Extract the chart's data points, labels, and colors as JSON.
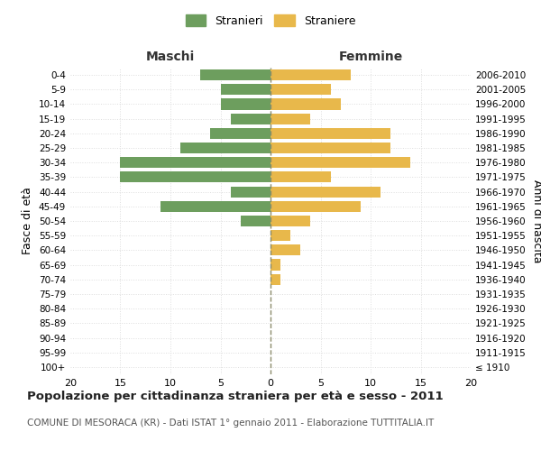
{
  "age_groups": [
    "100+",
    "95-99",
    "90-94",
    "85-89",
    "80-84",
    "75-79",
    "70-74",
    "65-69",
    "60-64",
    "55-59",
    "50-54",
    "45-49",
    "40-44",
    "35-39",
    "30-34",
    "25-29",
    "20-24",
    "15-19",
    "10-14",
    "5-9",
    "0-4"
  ],
  "birth_years": [
    "≤ 1910",
    "1911-1915",
    "1916-1920",
    "1921-1925",
    "1926-1930",
    "1931-1935",
    "1936-1940",
    "1941-1945",
    "1946-1950",
    "1951-1955",
    "1956-1960",
    "1961-1965",
    "1966-1970",
    "1971-1975",
    "1976-1980",
    "1981-1985",
    "1986-1990",
    "1991-1995",
    "1996-2000",
    "2001-2005",
    "2006-2010"
  ],
  "maschi": [
    0,
    0,
    0,
    0,
    0,
    0,
    0,
    0,
    0,
    0,
    3,
    11,
    4,
    15,
    15,
    9,
    6,
    4,
    5,
    5,
    7
  ],
  "femmine": [
    0,
    0,
    0,
    0,
    0,
    0,
    1,
    1,
    3,
    2,
    4,
    9,
    11,
    6,
    14,
    12,
    12,
    4,
    7,
    6,
    8
  ],
  "color_maschi": "#6d9e5e",
  "color_femmine": "#e8b84b",
  "color_center_line": "#8B8B6B",
  "title": "Popolazione per cittadinanza straniera per età e sesso - 2011",
  "subtitle": "COMUNE DI MESORACA (KR) - Dati ISTAT 1° gennaio 2011 - Elaborazione TUTTITALIA.IT",
  "label_maschi": "Maschi",
  "label_femmine": "Femmine",
  "ylabel_left": "Fasce di età",
  "ylabel_right": "Anni di nascita",
  "legend_maschi": "Stranieri",
  "legend_femmine": "Straniere",
  "xlim": 20,
  "background_color": "#ffffff",
  "grid_color": "#cccccc",
  "grid_color_h": "#dddddd"
}
